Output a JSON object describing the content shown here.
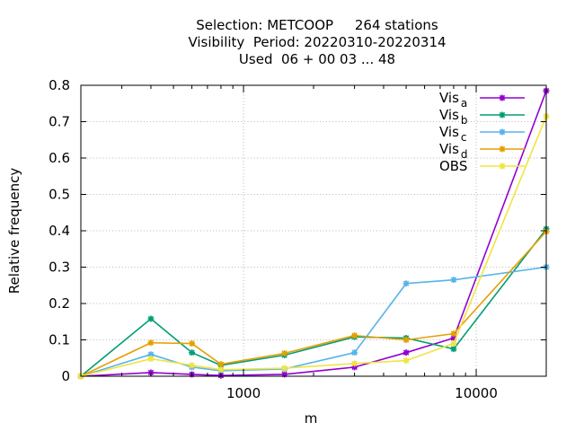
{
  "chart_data": {
    "type": "line",
    "title_lines": [
      "Selection: METCOOP     264 stations",
      "Visibility  Period: 20220310-20220314",
      "Used  06 + 00 03 ... 48"
    ],
    "xlabel": "m",
    "ylabel": "Relative frequency",
    "x_scale": "log",
    "xlim": [
      200,
      20000
    ],
    "ylim": [
      0,
      0.8
    ],
    "x_ticks": [
      1000,
      10000
    ],
    "x_tick_labels": [
      "1000",
      "10000"
    ],
    "y_ticks": [
      0,
      0.1,
      0.2,
      0.3,
      0.4,
      0.5,
      0.6,
      0.7,
      0.8
    ],
    "y_tick_labels": [
      "0",
      "0.1",
      "0.2",
      "0.3",
      "0.4",
      "0.5",
      "0.6",
      "0.7",
      "0.8"
    ],
    "grid": true,
    "legend_position": "top-right",
    "x": [
      200,
      400,
      600,
      800,
      1500,
      3000,
      5000,
      8000,
      20000
    ],
    "series": [
      {
        "name": "Vis",
        "subscript": "a",
        "color": "#9400d3",
        "values": [
          0,
          0.01,
          0.005,
          0.002,
          0.005,
          0.025,
          0.065,
          0.105,
          0.785
        ]
      },
      {
        "name": "Vis",
        "subscript": "b",
        "color": "#009e73",
        "values": [
          0,
          0.158,
          0.065,
          0.03,
          0.058,
          0.108,
          0.105,
          0.075,
          0.405
        ]
      },
      {
        "name": "Vis",
        "subscript": "c",
        "color": "#56b4e9",
        "values": [
          0,
          0.06,
          0.025,
          0.015,
          0.02,
          0.065,
          0.255,
          0.265,
          0.3
        ]
      },
      {
        "name": "Vis",
        "subscript": "d",
        "color": "#e69f00",
        "values": [
          0,
          0.092,
          0.09,
          0.033,
          0.063,
          0.112,
          0.1,
          0.117,
          0.398
        ]
      },
      {
        "name": "OBS",
        "subscript": "",
        "color": "#f0e442",
        "values": [
          0,
          0.048,
          0.03,
          0.018,
          0.022,
          0.035,
          0.043,
          0.09,
          0.715
        ]
      }
    ]
  }
}
